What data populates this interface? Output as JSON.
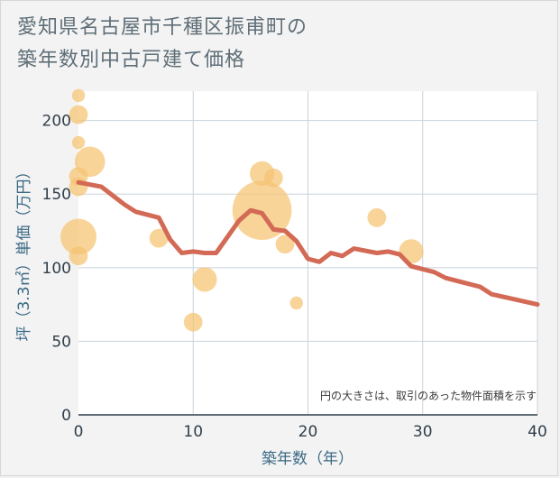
{
  "title_line1": "愛知県名古屋市千種区振甫町の",
  "title_line2": "築年数別中古戸建て価格",
  "note": "円の大きさは、取引のあった物件面積を示す",
  "chart_data": {
    "type": "scatter",
    "xlabel": "築年数（年）",
    "ylabel": "坪（3.3㎡）単価（万円）",
    "xlim": [
      0,
      40
    ],
    "ylim": [
      0,
      220
    ],
    "xticks": [
      0,
      10,
      20,
      30,
      40
    ],
    "yticks": [
      0,
      50,
      100,
      150,
      200
    ],
    "grid": true,
    "colors": {
      "bubble": "#f5c371",
      "line": "#d36a55",
      "grid": "#c8d3dc"
    },
    "bubbles": [
      {
        "x": 0,
        "y": 217,
        "size": 1
      },
      {
        "x": 0,
        "y": 204,
        "size": 2
      },
      {
        "x": 0,
        "y": 185,
        "size": 1
      },
      {
        "x": 0,
        "y": 162,
        "size": 2
      },
      {
        "x": 0,
        "y": 155,
        "size": 2
      },
      {
        "x": 0,
        "y": 121,
        "size": 5
      },
      {
        "x": 0,
        "y": 108,
        "size": 2
      },
      {
        "x": 1,
        "y": 172,
        "size": 4
      },
      {
        "x": 7,
        "y": 120,
        "size": 2
      },
      {
        "x": 10,
        "y": 63,
        "size": 2
      },
      {
        "x": 11,
        "y": 92,
        "size": 3
      },
      {
        "x": 16,
        "y": 139,
        "size": 9
      },
      {
        "x": 16,
        "y": 164,
        "size": 3
      },
      {
        "x": 17,
        "y": 161,
        "size": 2
      },
      {
        "x": 18,
        "y": 116,
        "size": 2
      },
      {
        "x": 19,
        "y": 76,
        "size": 1
      },
      {
        "x": 26,
        "y": 134,
        "size": 2
      },
      {
        "x": 29,
        "y": 111,
        "size": 3
      }
    ],
    "trend": {
      "x": [
        0,
        2,
        4,
        5,
        7,
        8,
        9,
        10,
        11,
        12,
        14,
        15,
        16,
        17,
        18,
        19,
        20,
        21,
        22,
        23,
        24,
        26,
        27,
        28,
        29,
        31,
        32,
        35,
        36,
        40
      ],
      "y": [
        158,
        155,
        143,
        138,
        134,
        119,
        110,
        111,
        110,
        110,
        132,
        139,
        137,
        126,
        125,
        118,
        106,
        104,
        110,
        108,
        113,
        110,
        111,
        109,
        101,
        97,
        93,
        87,
        82,
        75
      ]
    }
  }
}
